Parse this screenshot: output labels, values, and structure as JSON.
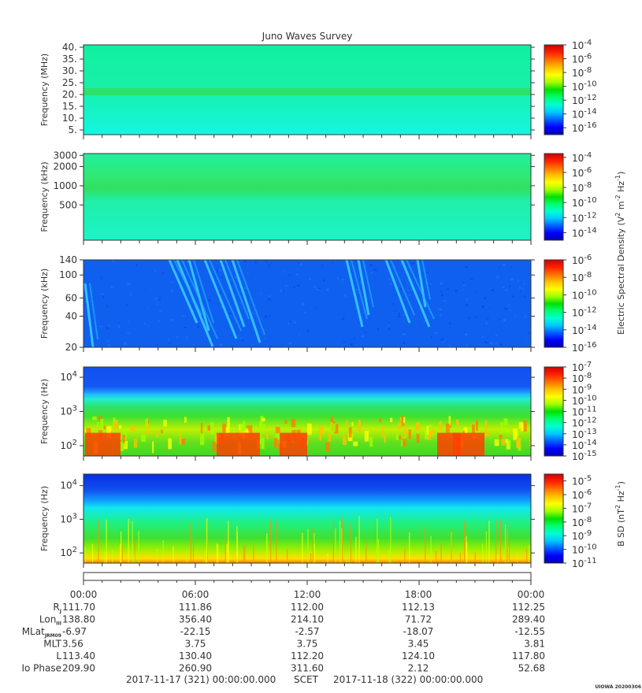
{
  "title": "Juno Waves Survey",
  "colorbar_title_efield": "Electric Spectral Density (V",
  "colorbar_title_efield_sup1": "2",
  "colorbar_title_efield_mid": " m",
  "colorbar_title_efield_sup2": "-2",
  "colorbar_title_efield_mid2": " Hz",
  "colorbar_title_efield_sup3": "-1",
  "colorbar_title_efield_end": ")",
  "colorbar_title_bfield": "B SD (nT",
  "colorbar_title_bfield_sup1": "2",
  "colorbar_title_bfield_mid": " Hz",
  "colorbar_title_bfield_sup2": "-1",
  "colorbar_title_bfield_end": ")",
  "scet_label": "SCET",
  "scet_start": "2017-11-17 (321) 00:00:00.000",
  "scet_end": "2017-11-18 (322) 00:00:00.000",
  "watermark": "UIOWA 20200306",
  "colors": {
    "colormap": [
      "#0000b4",
      "#0000ff",
      "#0060ff",
      "#00c8ff",
      "#00ffd0",
      "#00ff70",
      "#00e000",
      "#a0ff00",
      "#ffff00",
      "#ffc000",
      "#ff7000",
      "#ff2000",
      "#d00000"
    ]
  },
  "chart_data": [
    {
      "type": "heatmap",
      "ylabel": "Frequency (MHz)",
      "y_scale": "linear",
      "ylim": [
        3,
        41
      ],
      "y_ticks": [
        {
          "label": "40.",
          "value": 40
        },
        {
          "label": "35.",
          "value": 35
        },
        {
          "label": "30.",
          "value": 30
        },
        {
          "label": "25.",
          "value": 25
        },
        {
          "label": "20.",
          "value": 20
        },
        {
          "label": "15.",
          "value": 15
        },
        {
          "label": "10.",
          "value": 10
        },
        {
          "label": "5.",
          "value": 5
        }
      ],
      "colorbar": {
        "min_exp": -17,
        "max_exp": -4,
        "labels": [
          {
            "base": "10",
            "exp": "-4",
            "value": -4
          },
          {
            "base": "10",
            "exp": "-6",
            "value": -6
          },
          {
            "base": "10",
            "exp": "-8",
            "value": -8
          },
          {
            "base": "10",
            "exp": "-10",
            "value": -10
          },
          {
            "base": "10",
            "exp": "-12",
            "value": -12
          },
          {
            "base": "10",
            "exp": "-14",
            "value": -14
          },
          {
            "base": "10",
            "exp": "-16",
            "value": -16
          }
        ]
      }
    },
    {
      "type": "heatmap",
      "ylabel": "Frequency (kHz)",
      "y_scale": "log",
      "ylim": [
        140,
        3200
      ],
      "y_ticks": [
        {
          "label": "3000",
          "value": 3000
        },
        {
          "label": "2000",
          "value": 2000
        },
        {
          "label": "1000",
          "value": 1000
        },
        {
          "label": "500",
          "value": 500
        }
      ],
      "colorbar": {
        "min_exp": -15,
        "max_exp": -3.5,
        "labels": [
          {
            "base": "10",
            "exp": "-4",
            "value": -4
          },
          {
            "base": "10",
            "exp": "-6",
            "value": -6
          },
          {
            "base": "10",
            "exp": "-8",
            "value": -8
          },
          {
            "base": "10",
            "exp": "-10",
            "value": -10
          },
          {
            "base": "10",
            "exp": "-12",
            "value": -12
          },
          {
            "base": "10",
            "exp": "-14",
            "value": -14
          }
        ]
      }
    },
    {
      "type": "heatmap",
      "ylabel": "Frequency (kHz)",
      "y_scale": "log",
      "ylim": [
        20,
        140
      ],
      "y_ticks": [
        {
          "label": "140",
          "value": 140
        },
        {
          "label": "100",
          "value": 100
        },
        {
          "label": "60",
          "value": 60
        },
        {
          "label": "40",
          "value": 40
        },
        {
          "label": "20",
          "value": 20
        }
      ],
      "colorbar": {
        "min_exp": -16,
        "max_exp": -6,
        "labels": [
          {
            "base": "10",
            "exp": "-6",
            "value": -6
          },
          {
            "base": "10",
            "exp": "-8",
            "value": -8
          },
          {
            "base": "10",
            "exp": "-10",
            "value": -10
          },
          {
            "base": "10",
            "exp": "-12",
            "value": -12
          },
          {
            "base": "10",
            "exp": "-14",
            "value": -14
          },
          {
            "base": "10",
            "exp": "-16",
            "value": -16
          }
        ]
      }
    },
    {
      "type": "heatmap",
      "ylabel": "Frequency (Hz)",
      "y_scale": "log",
      "ylim": [
        50,
        20000
      ],
      "y_ticks": [
        {
          "base": "10",
          "exp": "4",
          "value": 10000
        },
        {
          "base": "10",
          "exp": "3",
          "value": 1000
        },
        {
          "base": "10",
          "exp": "2",
          "value": 100
        }
      ],
      "colorbar": {
        "min_exp": -15,
        "max_exp": -7,
        "labels": [
          {
            "base": "10",
            "exp": "-7",
            "value": -7
          },
          {
            "base": "10",
            "exp": "-8",
            "value": -8
          },
          {
            "base": "10",
            "exp": "-9",
            "value": -9
          },
          {
            "base": "10",
            "exp": "-10",
            "value": -10
          },
          {
            "base": "10",
            "exp": "-11",
            "value": -11
          },
          {
            "base": "10",
            "exp": "-12",
            "value": -12
          },
          {
            "base": "10",
            "exp": "-13",
            "value": -13
          },
          {
            "base": "10",
            "exp": "-14",
            "value": -14
          },
          {
            "base": "10",
            "exp": "-15",
            "value": -15
          }
        ]
      }
    },
    {
      "type": "heatmap",
      "ylabel": "Frequency (Hz)",
      "y_scale": "log",
      "ylim": [
        50,
        22000
      ],
      "y_ticks": [
        {
          "base": "10",
          "exp": "4",
          "value": 10000
        },
        {
          "base": "10",
          "exp": "3",
          "value": 1000
        },
        {
          "base": "10",
          "exp": "2",
          "value": 100
        }
      ],
      "colorbar": {
        "min_exp": -11,
        "max_exp": -4.5,
        "labels": [
          {
            "base": "10",
            "exp": "-5",
            "value": -5
          },
          {
            "base": "10",
            "exp": "-6",
            "value": -6
          },
          {
            "base": "10",
            "exp": "-7",
            "value": -7
          },
          {
            "base": "10",
            "exp": "-8",
            "value": -8
          },
          {
            "base": "10",
            "exp": "-9",
            "value": -9
          },
          {
            "base": "10",
            "exp": "-10",
            "value": -10
          },
          {
            "base": "10",
            "exp": "-11",
            "value": -11
          }
        ]
      }
    }
  ],
  "ephemeris": {
    "time_labels": [
      "00:00",
      "06:00",
      "12:00",
      "18:00",
      "00:00"
    ],
    "rows": [
      {
        "label": "R",
        "sub": "J",
        "values": [
          "111.70",
          "111.86",
          "112.00",
          "112.13",
          "112.25"
        ]
      },
      {
        "label": "Lon",
        "sub": "III",
        "values": [
          "138.80",
          "356.40",
          "214.10",
          "71.72",
          "289.40"
        ]
      },
      {
        "label": "MLat",
        "sub": "JRM09",
        "values": [
          "-6.97",
          "-22.15",
          "-2.57",
          "-18.07",
          "-12.55"
        ]
      },
      {
        "label": "MLT",
        "sub": "",
        "values": [
          "3.56",
          "3.75",
          "3.75",
          "3.45",
          "3.81"
        ]
      },
      {
        "label": "L",
        "sub": "",
        "values": [
          "113.40",
          "130.40",
          "112.20",
          "124.10",
          "117.80"
        ]
      },
      {
        "label": "Io Phase",
        "sub": "",
        "values": [
          "209.90",
          "260.90",
          "311.60",
          "2.12",
          "52.68"
        ]
      }
    ]
  }
}
